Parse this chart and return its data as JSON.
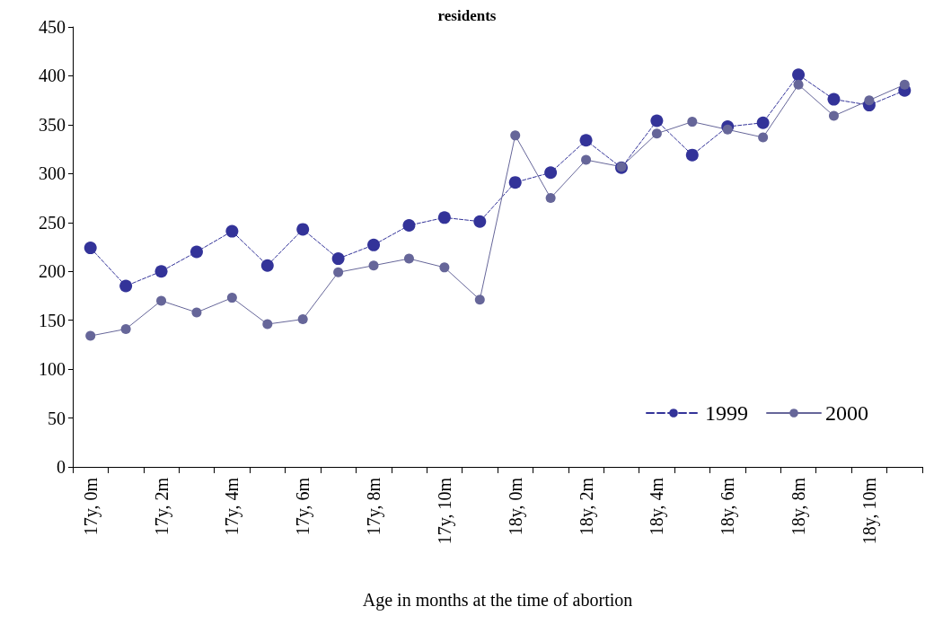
{
  "chart_data": {
    "type": "line",
    "title": "residents",
    "xlabel": "Age in months at the time of abortion",
    "categories": [
      "17y, 0m",
      null,
      "17y, 2m",
      null,
      "17y, 4m",
      null,
      "17y, 6m",
      null,
      "17y, 8m",
      null,
      "17y, 10m",
      null,
      "18y, 0m",
      null,
      "18y, 2m",
      null,
      "18y, 4m",
      null,
      "18y, 6m",
      null,
      "18y, 8m",
      null,
      "18y, 10m",
      null
    ],
    "series": [
      {
        "name": "1999",
        "color": "#333399",
        "line_style": "dashed",
        "values": [
          224,
          185,
          200,
          220,
          241,
          206,
          243,
          213,
          227,
          247,
          255,
          251,
          291,
          301,
          334,
          306,
          354,
          319,
          348,
          352,
          401,
          376,
          370,
          385
        ]
      },
      {
        "name": "2000",
        "color": "#666699",
        "line_style": "solid",
        "values": [
          134,
          141,
          170,
          158,
          173,
          146,
          151,
          199,
          206,
          213,
          204,
          171,
          339,
          275,
          314,
          307,
          341,
          353,
          345,
          337,
          391,
          359,
          375,
          391
        ]
      }
    ],
    "ylim": [
      0,
      450
    ],
    "yticks": [
      0,
      50,
      100,
      150,
      200,
      250,
      300,
      350,
      400,
      450
    ],
    "grid": false,
    "legend": "bottom right",
    "marker": "circle"
  }
}
